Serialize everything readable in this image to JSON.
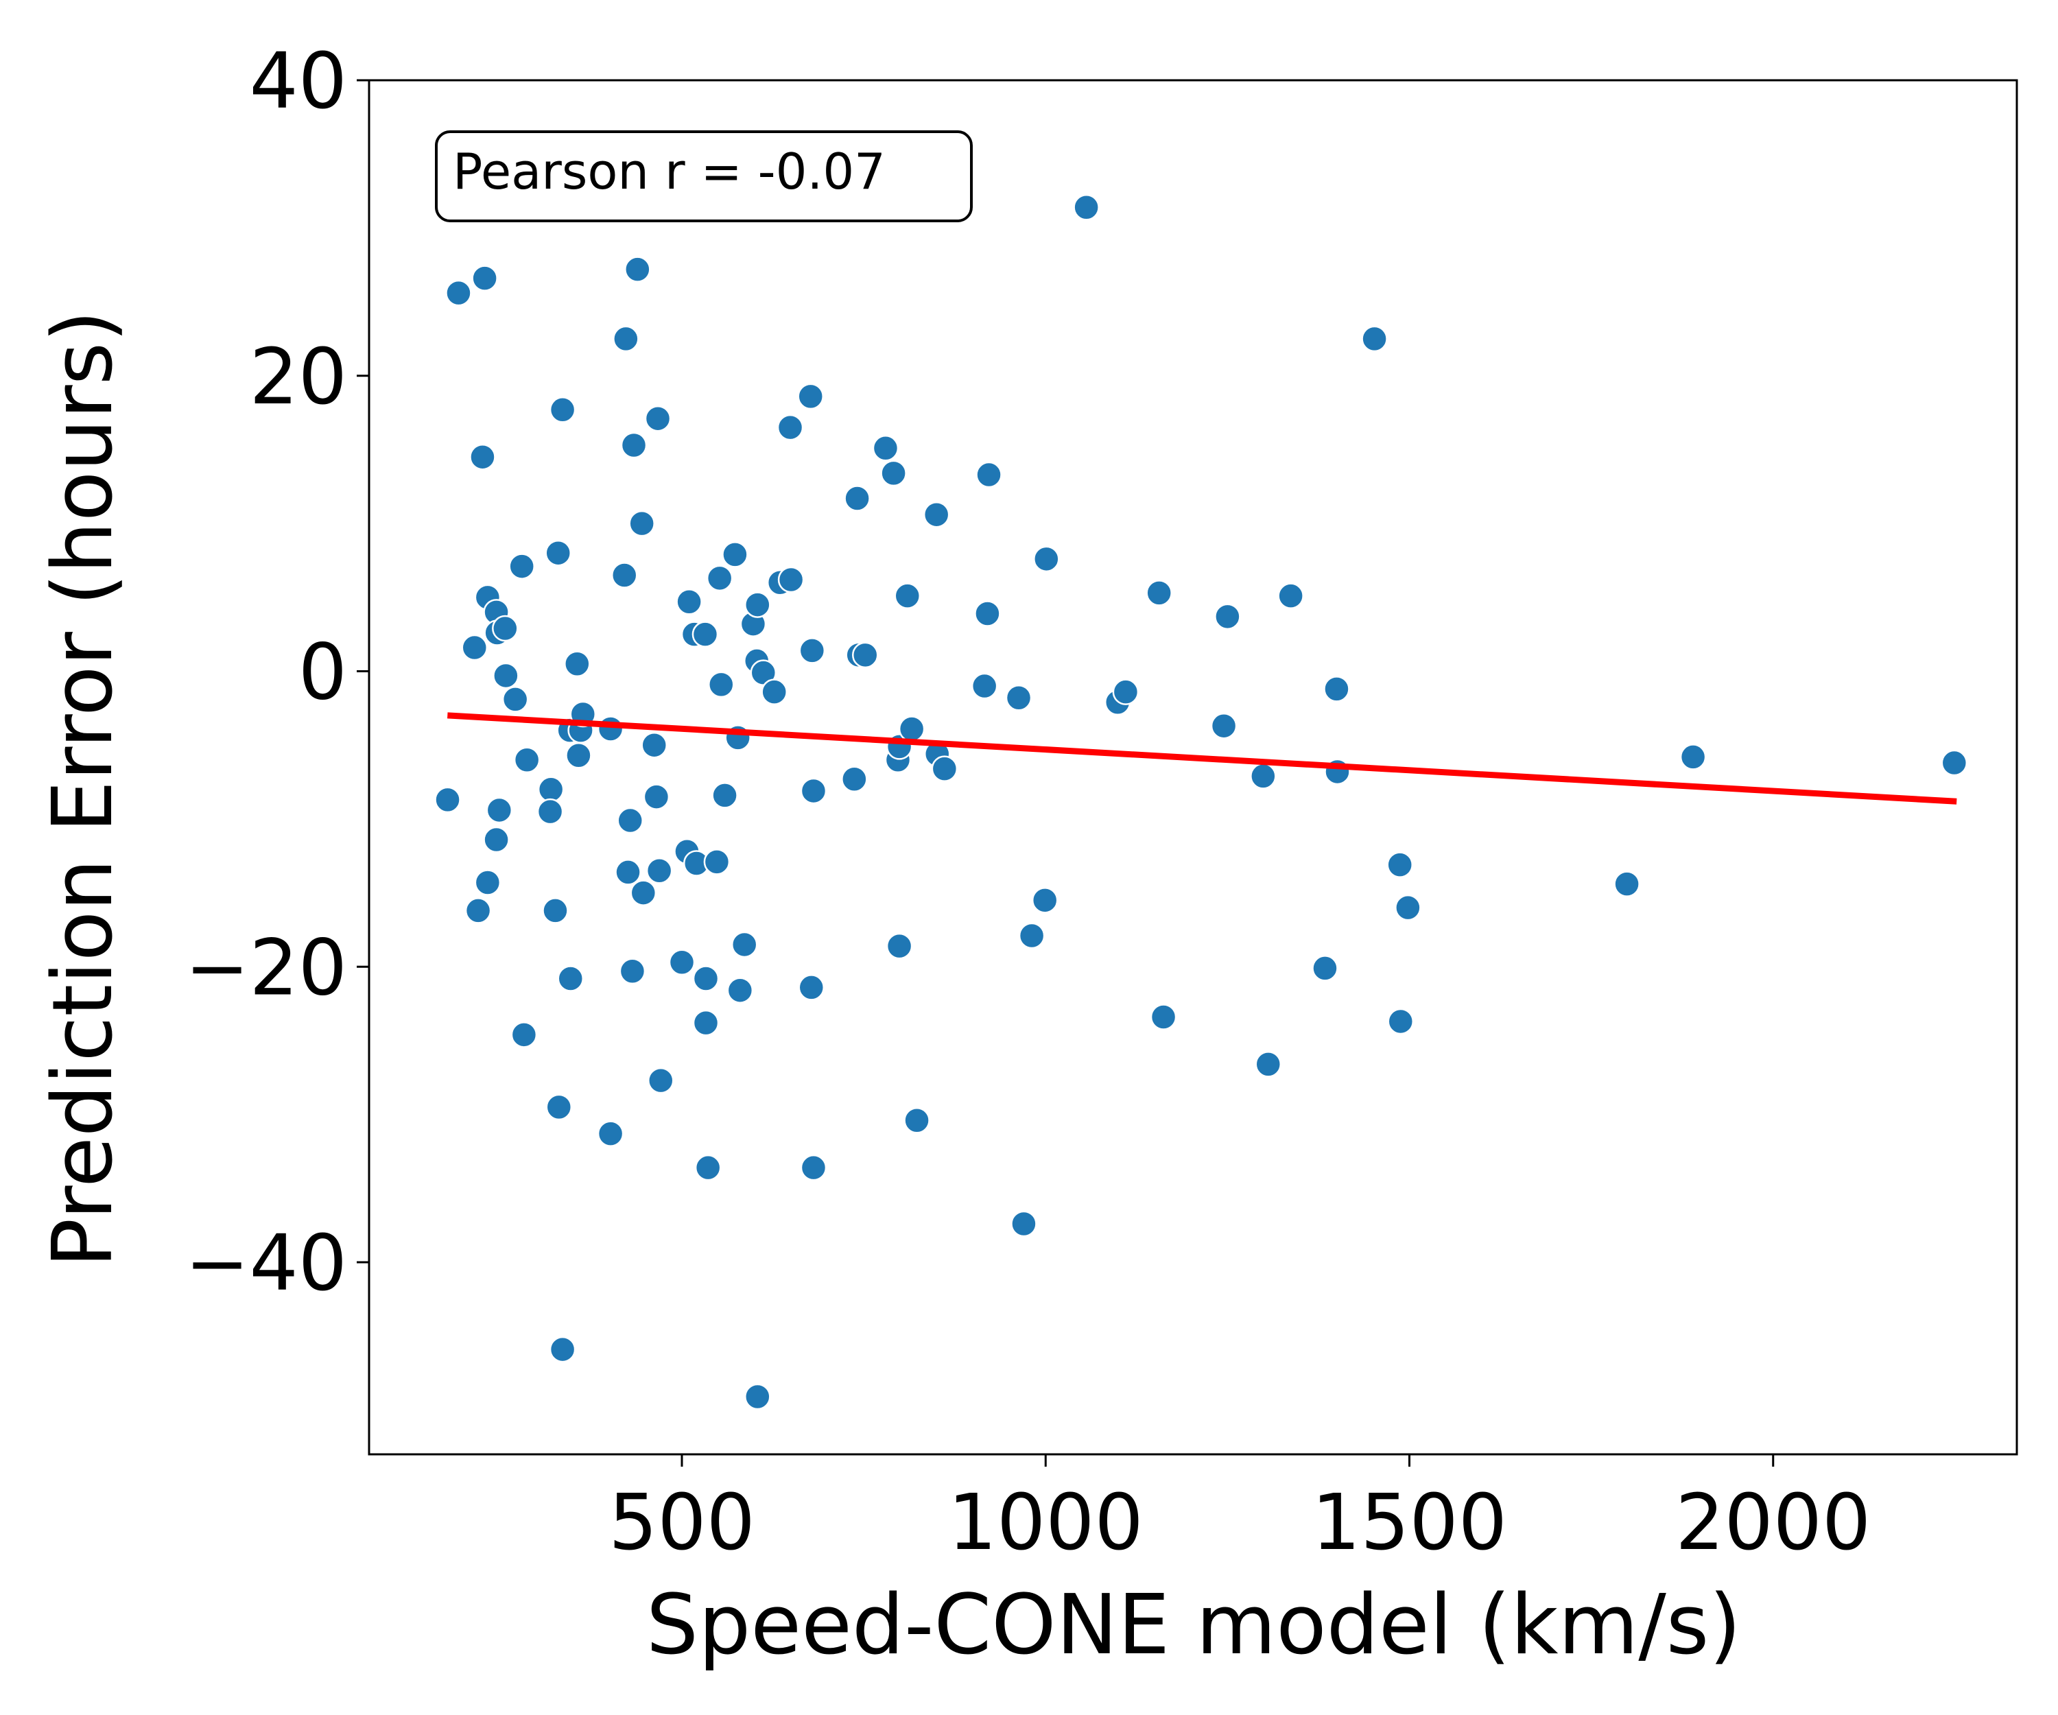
{
  "chart_data": {
    "type": "scatter",
    "xlabel": "Speed-CONE model (km/s)",
    "ylabel": "Prediction Error (hours)",
    "xlim": [
      70,
      2335
    ],
    "ylim": [
      -53,
      40
    ],
    "xticks": [
      500,
      1000,
      1500,
      2000
    ],
    "yticks": [
      -40,
      -20,
      0,
      20,
      40
    ],
    "xtick_labels": [
      "500",
      "1000",
      "1500",
      "2000"
    ],
    "ytick_labels": [
      "−40",
      "−20",
      "0",
      "20",
      "40"
    ],
    "annotation": "Pearson r = -0.07",
    "annotation_placement": "top-left",
    "grid": false,
    "point_color": "#1f77b4",
    "fit_color": "#ff0000",
    "fit_line": {
      "x": [
        182,
        2248
      ],
      "y": [
        -3.0,
        -8.8
      ]
    },
    "points": [
      {
        "x": 178,
        "y": -8.7
      },
      {
        "x": 193,
        "y": 25.6
      },
      {
        "x": 215,
        "y": 1.6
      },
      {
        "x": 220,
        "y": -16.2
      },
      {
        "x": 226,
        "y": 14.5
      },
      {
        "x": 229,
        "y": 26.6
      },
      {
        "x": 233,
        "y": 5.0
      },
      {
        "x": 233,
        "y": -14.3
      },
      {
        "x": 245,
        "y": 4.0
      },
      {
        "x": 246,
        "y": 2.6
      },
      {
        "x": 249,
        "y": -9.4
      },
      {
        "x": 245,
        "y": -11.4
      },
      {
        "x": 257,
        "y": 2.9
      },
      {
        "x": 258,
        "y": -0.3
      },
      {
        "x": 271,
        "y": -1.9
      },
      {
        "x": 280,
        "y": 7.1
      },
      {
        "x": 283,
        "y": -24.6
      },
      {
        "x": 287,
        "y": -6.0
      },
      {
        "x": 320,
        "y": -8.0
      },
      {
        "x": 319,
        "y": -9.5
      },
      {
        "x": 326,
        "y": -16.2
      },
      {
        "x": 330,
        "y": 8.0
      },
      {
        "x": 331,
        "y": -29.5
      },
      {
        "x": 336,
        "y": 17.7
      },
      {
        "x": 336,
        "y": -45.9
      },
      {
        "x": 346,
        "y": -4.0
      },
      {
        "x": 347,
        "y": -20.8
      },
      {
        "x": 356,
        "y": 0.5
      },
      {
        "x": 358,
        "y": -5.7
      },
      {
        "x": 361,
        "y": -4.0
      },
      {
        "x": 364,
        "y": -2.9
      },
      {
        "x": 402,
        "y": -3.9
      },
      {
        "x": 402,
        "y": -31.3
      },
      {
        "x": 421,
        "y": 6.5
      },
      {
        "x": 423,
        "y": 22.5
      },
      {
        "x": 426,
        "y": -13.6
      },
      {
        "x": 429,
        "y": -10.1
      },
      {
        "x": 432,
        "y": -20.3
      },
      {
        "x": 434,
        "y": 15.3
      },
      {
        "x": 439,
        "y": 27.2
      },
      {
        "x": 445,
        "y": 10.0
      },
      {
        "x": 447,
        "y": -15.0
      },
      {
        "x": 462,
        "y": -5.0
      },
      {
        "x": 465,
        "y": -8.5
      },
      {
        "x": 467,
        "y": 17.1
      },
      {
        "x": 469,
        "y": -13.5
      },
      {
        "x": 471,
        "y": -27.7
      },
      {
        "x": 500,
        "y": -19.7
      },
      {
        "x": 507,
        "y": -12.2
      },
      {
        "x": 510,
        "y": 4.7
      },
      {
        "x": 517,
        "y": 2.5
      },
      {
        "x": 520,
        "y": -13.0
      },
      {
        "x": 532,
        "y": 2.5
      },
      {
        "x": 533,
        "y": -20.8
      },
      {
        "x": 533,
        "y": -23.8
      },
      {
        "x": 536,
        "y": -33.6
      },
      {
        "x": 548,
        "y": -12.9
      },
      {
        "x": 552,
        "y": 6.3
      },
      {
        "x": 554,
        "y": -0.9
      },
      {
        "x": 559,
        "y": -8.4
      },
      {
        "x": 573,
        "y": 7.9
      },
      {
        "x": 577,
        "y": -4.5
      },
      {
        "x": 580,
        "y": -21.6
      },
      {
        "x": 586,
        "y": -18.5
      },
      {
        "x": 598,
        "y": 3.2
      },
      {
        "x": 603,
        "y": 0.7
      },
      {
        "x": 604,
        "y": 4.5
      },
      {
        "x": 604,
        "y": -49.1
      },
      {
        "x": 612,
        "y": -0.1
      },
      {
        "x": 627,
        "y": -1.4
      },
      {
        "x": 635,
        "y": 6.0
      },
      {
        "x": 649,
        "y": 16.5
      },
      {
        "x": 650,
        "y": 6.2
      },
      {
        "x": 677,
        "y": 18.6
      },
      {
        "x": 678,
        "y": -21.4
      },
      {
        "x": 679,
        "y": 1.4
      },
      {
        "x": 681,
        "y": -8.1
      },
      {
        "x": 681,
        "y": -33.6
      },
      {
        "x": 737,
        "y": -7.3
      },
      {
        "x": 741,
        "y": 11.7
      },
      {
        "x": 743,
        "y": 1.1
      },
      {
        "x": 752,
        "y": 1.1
      },
      {
        "x": 780,
        "y": 15.1
      },
      {
        "x": 791,
        "y": 13.4
      },
      {
        "x": 797,
        "y": -6.0
      },
      {
        "x": 799,
        "y": -5.1
      },
      {
        "x": 799,
        "y": -18.6
      },
      {
        "x": 810,
        "y": 5.1
      },
      {
        "x": 816,
        "y": -3.9
      },
      {
        "x": 823,
        "y": -30.4
      },
      {
        "x": 850,
        "y": 10.6
      },
      {
        "x": 851,
        "y": -5.6
      },
      {
        "x": 861,
        "y": -6.6
      },
      {
        "x": 916,
        "y": -1.0
      },
      {
        "x": 920,
        "y": 3.9
      },
      {
        "x": 922,
        "y": 13.3
      },
      {
        "x": 963,
        "y": -1.8
      },
      {
        "x": 970,
        "y": -37.4
      },
      {
        "x": 981,
        "y": -17.9
      },
      {
        "x": 999,
        "y": -15.5
      },
      {
        "x": 1001,
        "y": 7.6
      },
      {
        "x": 1056,
        "y": 31.4
      },
      {
        "x": 1099,
        "y": -2.1
      },
      {
        "x": 1110,
        "y": -1.4
      },
      {
        "x": 1156,
        "y": 5.3
      },
      {
        "x": 1162,
        "y": -23.4
      },
      {
        "x": 1245,
        "y": -3.7
      },
      {
        "x": 1250,
        "y": 3.7
      },
      {
        "x": 1299,
        "y": -7.1
      },
      {
        "x": 1306,
        "y": -26.6
      },
      {
        "x": 1337,
        "y": 5.1
      },
      {
        "x": 1384,
        "y": -20.1
      },
      {
        "x": 1400,
        "y": -1.2
      },
      {
        "x": 1401,
        "y": -6.8
      },
      {
        "x": 1452,
        "y": 22.5
      },
      {
        "x": 1487,
        "y": -13.1
      },
      {
        "x": 1488,
        "y": -23.7
      },
      {
        "x": 1498,
        "y": -16.0
      },
      {
        "x": 1799,
        "y": -14.4
      },
      {
        "x": 1890,
        "y": -5.8
      },
      {
        "x": 2249,
        "y": -6.2
      }
    ]
  }
}
